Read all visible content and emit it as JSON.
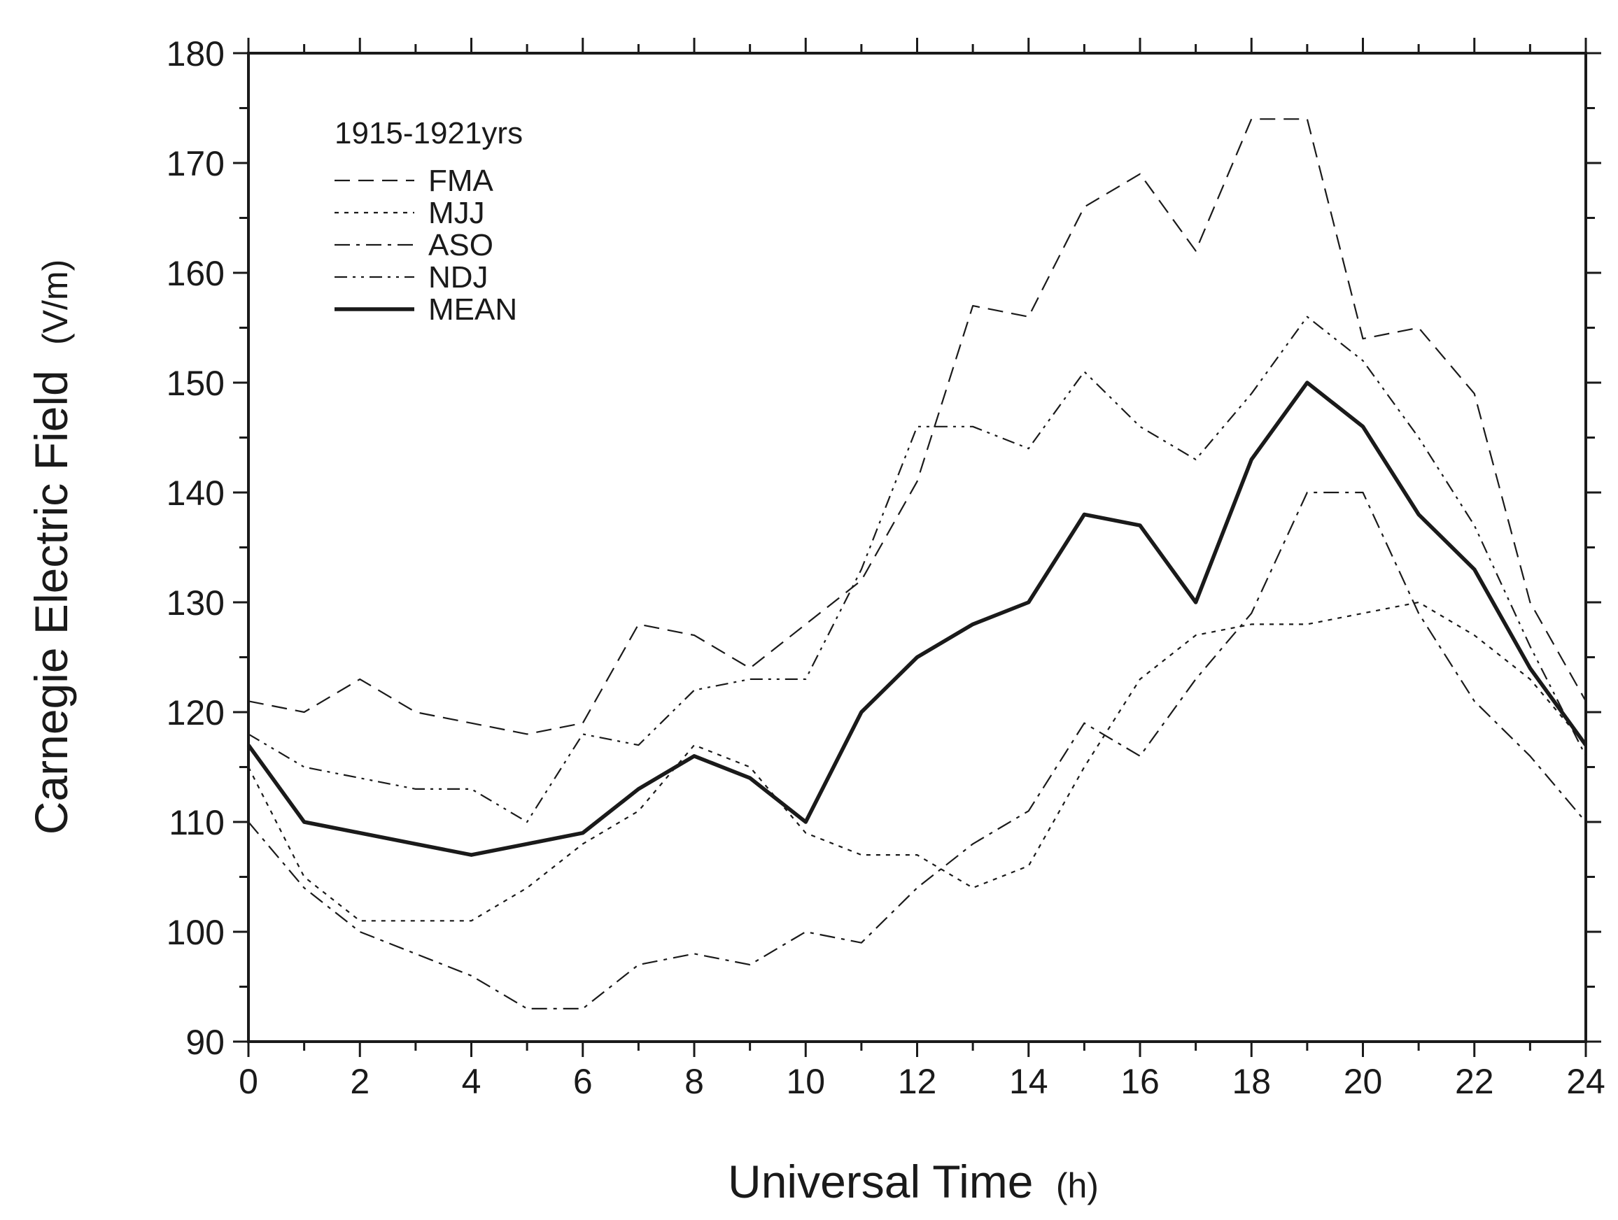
{
  "chart_data": {
    "type": "line",
    "title": "",
    "xlabel": "Universal Time",
    "xlabel_unit": "(h)",
    "ylabel": "Carnegie Electric Field",
    "ylabel_unit": "(V/m)",
    "xlim": [
      0,
      24
    ],
    "ylim": [
      90,
      180
    ],
    "xticks": [
      0,
      2,
      4,
      6,
      8,
      10,
      12,
      14,
      16,
      18,
      20,
      22,
      24
    ],
    "yticks": [
      90,
      100,
      110,
      120,
      130,
      140,
      150,
      160,
      170,
      180
    ],
    "xtick_labels": [
      "0",
      "2",
      "4",
      "6",
      "8",
      "10",
      "12",
      "14",
      "16",
      "18",
      "20",
      "22",
      "24"
    ],
    "ytick_labels": [
      "90",
      "100",
      "110",
      "120",
      "130",
      "140",
      "150",
      "160",
      "170",
      "180"
    ],
    "x": [
      0,
      1,
      2,
      3,
      4,
      5,
      6,
      7,
      8,
      9,
      10,
      11,
      12,
      13,
      14,
      15,
      16,
      17,
      18,
      19,
      20,
      21,
      22,
      23,
      24
    ],
    "legend_title": "1915-1921yrs",
    "legend_position": "top-left",
    "grid": false,
    "series": [
      {
        "name": "FMA",
        "style": "dashed",
        "values": [
          121,
          120,
          123,
          120,
          119,
          118,
          119,
          128,
          127,
          124,
          128,
          132,
          141,
          157,
          156,
          166,
          169,
          162,
          174,
          174,
          154,
          155,
          149,
          130,
          121
        ]
      },
      {
        "name": "MJJ",
        "style": "dotted",
        "values": [
          115,
          105,
          101,
          101,
          101,
          104,
          108,
          111,
          117,
          115,
          109,
          107,
          107,
          104,
          106,
          115,
          123,
          127,
          128,
          128,
          129,
          130,
          127,
          123,
          117
        ]
      },
      {
        "name": "ASO",
        "style": "dash-dot",
        "values": [
          110,
          104,
          100,
          98,
          96,
          93,
          93,
          97,
          98,
          97,
          100,
          99,
          104,
          108,
          111,
          119,
          116,
          123,
          129,
          140,
          140,
          129,
          121,
          116,
          110
        ]
      },
      {
        "name": "NDJ",
        "style": "dash-dot-dot",
        "values": [
          118,
          115,
          114,
          113,
          113,
          110,
          118,
          117,
          122,
          123,
          123,
          133,
          146,
          146,
          144,
          151,
          146,
          143,
          149,
          156,
          152,
          145,
          137,
          126,
          116
        ]
      },
      {
        "name": "MEAN",
        "style": "solid",
        "values": [
          117,
          110,
          109,
          108,
          107,
          108,
          109,
          113,
          116,
          114,
          110,
          120,
          125,
          128,
          130,
          138,
          137,
          130,
          143,
          150,
          146,
          138,
          133,
          124,
          117
        ]
      }
    ]
  }
}
